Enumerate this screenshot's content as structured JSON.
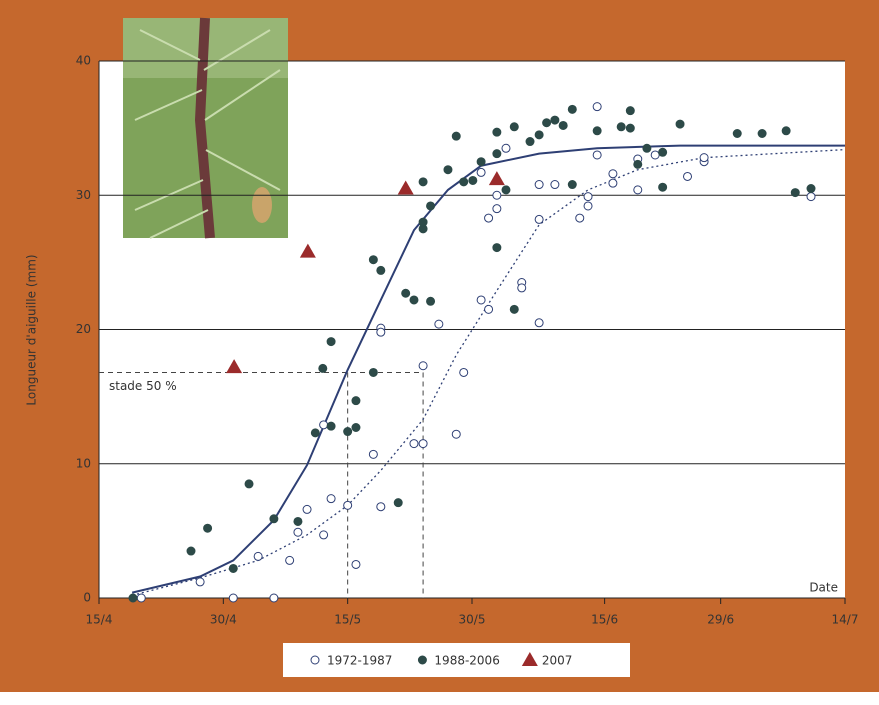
{
  "chart_data": {
    "type": "scatter",
    "ylabel": "Longueur  d'aiguille (mm)",
    "xlabel": "Date",
    "xlim": [
      105,
      195
    ],
    "xticks": [
      {
        "value": 105,
        "label": "15/4"
      },
      {
        "value": 120,
        "label": "30/4"
      },
      {
        "value": 135,
        "label": "15/5"
      },
      {
        "value": 150,
        "label": "30/5"
      },
      {
        "value": 166,
        "label": "15/6"
      },
      {
        "value": 180,
        "label": "29/6"
      },
      {
        "value": 195,
        "label": "14/7"
      }
    ],
    "ylim": [
      0,
      40
    ],
    "yticks": [
      0,
      10,
      20,
      30,
      40
    ],
    "grid": true,
    "series": [
      {
        "name": "1972-1987",
        "marker": "open-circle",
        "color": "#2e3f74",
        "x": [
          110.1,
          117.2,
          121.2,
          124.2,
          126.1,
          128,
          129,
          130.1,
          132.1,
          132.1,
          133,
          135,
          136,
          138.1,
          139,
          139,
          139,
          143,
          144.1,
          144.1,
          146,
          148.1,
          149,
          151.1,
          151.1,
          152,
          152,
          153,
          153,
          154.1,
          156,
          156,
          158.1,
          158.1,
          158.1,
          160,
          163,
          164,
          164,
          165.1,
          165.1,
          167,
          167,
          170,
          170,
          172.1,
          176,
          178,
          178,
          190.9
        ],
        "values": [
          0,
          1.2,
          0,
          3.1,
          0,
          2.8,
          4.9,
          6.6,
          4.7,
          12.9,
          7.4,
          6.9,
          2.5,
          10.7,
          6.8,
          20.1,
          19.8,
          11.5,
          11.5,
          17.3,
          20.4,
          12.2,
          16.8,
          22.2,
          31.7,
          21.5,
          28.3,
          29,
          30,
          33.5,
          23.5,
          23.1,
          20.5,
          28.2,
          30.8,
          30.8,
          28.3,
          29.9,
          29.2,
          36.6,
          33,
          31.6,
          30.9,
          32.7,
          30.4,
          33,
          31.4,
          32.5,
          32.8,
          29.9
        ]
      },
      {
        "name": "1988-2006",
        "marker": "filled-circle",
        "color": "#2d4a48",
        "x": [
          109.1,
          116.1,
          118.1,
          121.2,
          123.1,
          126.1,
          129,
          131.1,
          132,
          133,
          133,
          135,
          136,
          136,
          138.1,
          138.1,
          139,
          141.1,
          142,
          143,
          144.1,
          144.1,
          144.1,
          145,
          145,
          147.1,
          148.1,
          149,
          150.1,
          151.1,
          153,
          153,
          153,
          154.1,
          155.1,
          155.1,
          157,
          158.1,
          159,
          160,
          161,
          162.1,
          162.1,
          165.1,
          168,
          169.1,
          169.1,
          170,
          171.1,
          173,
          173,
          175.1,
          182,
          185,
          187.9,
          189,
          190.9
        ],
        "values": [
          0,
          3.5,
          5.2,
          2.2,
          8.5,
          5.9,
          5.7,
          12.3,
          17.1,
          19.1,
          12.8,
          12.4,
          14.7,
          12.7,
          16.8,
          25.2,
          24.4,
          7.1,
          22.7,
          22.2,
          27.5,
          28,
          31,
          29.2,
          22.1,
          31.9,
          34.4,
          31,
          31.1,
          32.5,
          26.1,
          33.1,
          34.7,
          30.4,
          21.5,
          35.1,
          34,
          34.5,
          35.4,
          35.6,
          35.2,
          36.4,
          30.8,
          34.8,
          35.1,
          36.3,
          35,
          32.3,
          33.5,
          33.2,
          30.6,
          35.3,
          34.6,
          34.6,
          34.8,
          30.2,
          30.5
        ]
      },
      {
        "name": "2007",
        "marker": "triangle",
        "color": "#9b2b2b",
        "x": [
          121.3,
          130.2,
          142,
          153
        ],
        "values": [
          17.2,
          25.8,
          30.5,
          31.2
        ]
      }
    ],
    "curves": [
      {
        "style": "solid",
        "color": "#2e3f74",
        "x": [
          109,
          117.2,
          121.2,
          126.1,
          130.1,
          135,
          139,
          143,
          147.1,
          151.1,
          158.1,
          165.1,
          175.1,
          195
        ],
        "values": [
          0.4,
          1.6,
          2.8,
          5.8,
          9.9,
          17,
          22.2,
          27.4,
          30.4,
          32.2,
          33.1,
          33.5,
          33.7,
          33.7
        ]
      },
      {
        "style": "dotted",
        "color": "#2e3f74",
        "x": [
          109,
          117.2,
          124.2,
          130.1,
          135,
          139,
          144.1,
          148.1,
          153,
          158.1,
          164,
          170,
          178,
          195
        ],
        "values": [
          0.2,
          1.5,
          2.8,
          4.7,
          6.9,
          9.5,
          13.3,
          18.1,
          22.9,
          27.8,
          30.4,
          31.9,
          32.8,
          33.4
        ]
      }
    ],
    "annotation": {
      "label": "stade 50 %",
      "y": 16.8,
      "x": [
        135,
        144.1
      ]
    }
  }
}
